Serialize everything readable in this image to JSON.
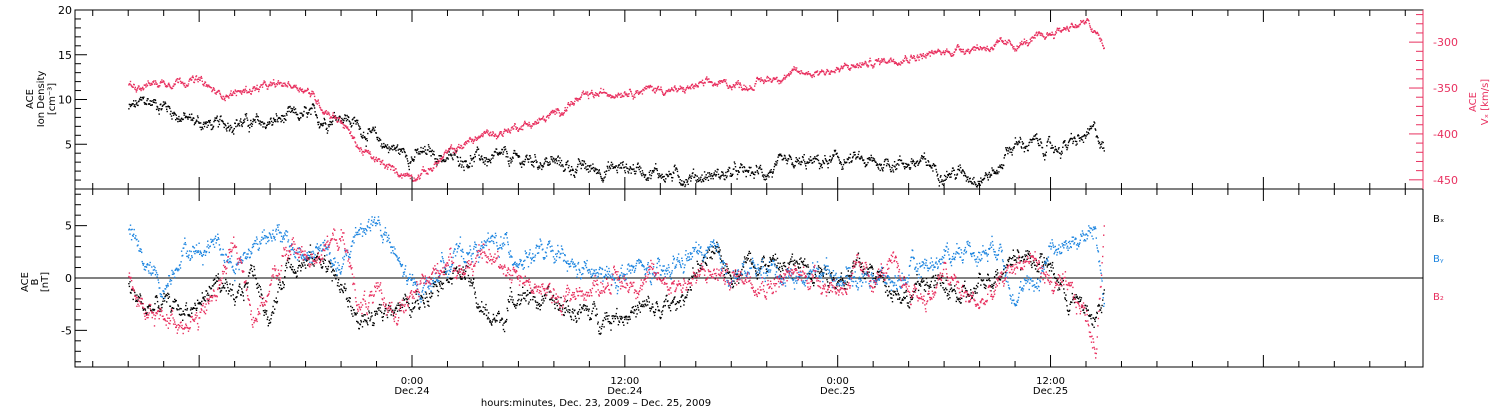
{
  "colors": {
    "black": "#000000",
    "pink": "#e8305f",
    "blue": "#1f86e0",
    "frame": "#000000"
  },
  "chart_data": [
    {
      "type": "scatter",
      "panel": "top",
      "left_axis": {
        "label_lines": [
          "ACE",
          "Ion Density",
          "[cm⁻³]"
        ],
        "ticks": [
          5,
          10,
          15,
          20
        ],
        "ylim": [
          0,
          20
        ]
      },
      "right_axis": {
        "label_lines": [
          "ACE",
          "Vₓ [km/s]"
        ],
        "ticks": [
          -300,
          -350,
          -400,
          -450
        ],
        "ylim": [
          -460,
          -265
        ],
        "color": "pink"
      },
      "series": [
        {
          "color": "black",
          "axis": "left",
          "x": [
            -16,
            -15,
            -14,
            -13,
            -12,
            -11,
            -10,
            -9,
            -8,
            -7,
            -6,
            -5,
            -4,
            -3,
            -2,
            -1,
            0,
            1,
            2,
            3,
            4,
            4.5,
            5,
            6,
            7,
            8,
            9,
            10,
            11,
            12,
            13,
            14,
            15,
            16,
            17,
            18,
            19,
            20,
            21,
            22,
            23,
            24,
            25,
            26,
            27,
            28,
            29,
            30,
            31,
            32,
            33,
            33.5,
            34,
            35,
            36,
            37,
            38,
            38.5,
            39
          ],
          "y": [
            9,
            9.8,
            9.5,
            8,
            7.5,
            7,
            7.8,
            7.2,
            7.5,
            8,
            8.2,
            7.8,
            8.5,
            7,
            5.5,
            4.5,
            3.8,
            4,
            3.5,
            3.5,
            3.5,
            3,
            3.5,
            3.2,
            3.3,
            3,
            2.5,
            2.3,
            2.3,
            2.5,
            2.3,
            1.8,
            1.5,
            1.5,
            1.6,
            1.8,
            1.8,
            2,
            2.5,
            2.8,
            3,
            3.2,
            3.2,
            2.8,
            3.1,
            3,
            2.8,
            2,
            1.8,
            1.5,
            2,
            4.5,
            5,
            5.2,
            4.5,
            5,
            5.8,
            6.5,
            4.5
          ]
        },
        {
          "color": "pink",
          "axis": "right",
          "x": [
            -16,
            -15,
            -14,
            -13,
            -12,
            -11,
            -10,
            -9,
            -8,
            -7,
            -6,
            -5,
            -4,
            -3,
            -2,
            -1,
            0,
            1,
            2,
            3,
            4,
            5,
            6,
            7,
            8,
            9,
            10,
            11,
            12,
            13,
            14,
            15,
            16,
            17,
            18,
            19,
            20,
            21,
            22,
            23,
            24,
            25,
            26,
            27,
            28,
            29,
            30,
            31,
            32,
            33,
            34,
            35,
            36,
            37,
            38,
            38.5,
            39
          ],
          "y": [
            -347,
            -345,
            -343,
            -340,
            -342,
            -356,
            -355,
            -350,
            -348,
            -345,
            -350,
            -372,
            -385,
            -415,
            -430,
            -440,
            -445,
            -438,
            -420,
            -410,
            -400,
            -398,
            -390,
            -387,
            -378,
            -365,
            -358,
            -355,
            -352,
            -351,
            -350,
            -353,
            -347,
            -345,
            -345,
            -347,
            -340,
            -335,
            -333,
            -331,
            -330,
            -325,
            -322,
            -317,
            -315,
            -314,
            -310,
            -306,
            -305,
            -303,
            -303,
            -298,
            -290,
            -282,
            -278,
            -290,
            -305
          ]
        }
      ]
    },
    {
      "type": "scatter",
      "panel": "bottom",
      "left_axis": {
        "label_lines": [
          "ACE",
          "B",
          "[nT]"
        ],
        "ticks": [
          -5,
          0,
          5
        ],
        "ylim": [
          -8.5,
          8.5
        ]
      },
      "zero_line": true,
      "legend": [
        "Bₓ",
        "Bᵧ",
        "B₂"
      ],
      "legend_position": "right",
      "series": [
        {
          "color": "black",
          "x": [
            -16,
            -15,
            -14,
            -13,
            -12,
            -11,
            -10,
            -9,
            -8,
            -7,
            -6,
            -5,
            -4,
            -3,
            -2,
            -1,
            0,
            1,
            2,
            3,
            4,
            5,
            6,
            7,
            8,
            9,
            10,
            11,
            12,
            13,
            14,
            15,
            16,
            17,
            18,
            19,
            20,
            21,
            22,
            23,
            24,
            25,
            26,
            27,
            28,
            29,
            30,
            31,
            32,
            33,
            34,
            35,
            36,
            37,
            38,
            38.5,
            39
          ],
          "y": [
            -1,
            -3,
            -2.5,
            -3,
            -2.5,
            0,
            -3,
            1,
            -4,
            2,
            1.5,
            2,
            -1,
            -4,
            -4,
            -2,
            -3,
            -0.5,
            1,
            0.5,
            -3.5,
            -4,
            -1,
            -2,
            -2.5,
            -3,
            -3.5,
            -3.5,
            -3.2,
            -3,
            -3,
            -2.5,
            1,
            2,
            0.5,
            2,
            1.5,
            1,
            1.5,
            1,
            0,
            1,
            0.5,
            -0.5,
            -2,
            0,
            -1,
            -2,
            -1,
            1,
            2.5,
            2,
            1,
            -2,
            -3,
            -4,
            -1
          ]
        },
        {
          "color": "blue",
          "x": [
            -16,
            -15,
            -14,
            -13,
            -12,
            -11,
            -10,
            -9,
            -8,
            -7,
            -6,
            -5,
            -4,
            -3,
            -2,
            -1,
            0,
            1,
            2,
            3,
            4,
            5,
            6,
            7,
            8,
            9,
            10,
            11,
            12,
            13,
            14,
            15,
            16,
            17,
            18,
            19,
            20,
            21,
            22,
            23,
            24,
            25,
            26,
            27,
            28,
            29,
            30,
            31,
            32,
            33,
            34,
            35,
            36,
            37,
            38,
            38.5,
            39
          ],
          "y": [
            4.5,
            1,
            -1,
            3,
            2.5,
            4,
            1,
            3,
            5,
            3,
            2,
            3,
            0.5,
            5,
            5.5,
            2,
            -1,
            -0.5,
            2,
            2.5,
            3,
            3.5,
            2,
            2.5,
            2,
            1,
            0.5,
            0,
            0.5,
            1,
            0,
            1.5,
            2.5,
            2,
            0.5,
            0.5,
            1,
            0.5,
            0,
            1,
            0.5,
            0,
            0.5,
            -0.5,
            0.5,
            1.5,
            2,
            3,
            2.5,
            3.5,
            -1.5,
            -1,
            3,
            3.5,
            4,
            4.5,
            -2
          ]
        },
        {
          "color": "pink",
          "x": [
            -16,
            -15,
            -14,
            -13,
            -12,
            -11,
            -10,
            -9,
            -8,
            -7,
            -6,
            -5,
            -4,
            -3,
            -2,
            -1,
            0,
            1,
            2,
            3,
            4,
            5,
            6,
            7,
            8,
            9,
            10,
            11,
            12,
            13,
            14,
            15,
            16,
            17,
            18,
            19,
            20,
            21,
            22,
            23,
            24,
            25,
            26,
            27,
            28,
            29,
            30,
            31,
            32,
            33,
            34,
            35,
            36,
            37,
            38,
            38.5,
            39
          ],
          "y": [
            0,
            -4,
            -3.5,
            -4,
            -4,
            -1,
            3.5,
            -3.5,
            -1,
            3,
            2,
            3,
            4,
            -2.5,
            -2,
            -3,
            -2,
            0,
            2,
            1,
            2,
            1.5,
            0.5,
            -1,
            -2,
            -1.5,
            -1,
            0,
            -0.5,
            0,
            0,
            -0.5,
            0,
            0.5,
            0,
            0.5,
            -0.5,
            0,
            0.5,
            0,
            -1,
            0.5,
            0,
            1,
            -1,
            -2,
            0.5,
            -1.5,
            -2.5,
            -1,
            1.5,
            2,
            -0.5,
            -1.5,
            -3.5,
            -7,
            5
          ]
        }
      ],
      "x_axis": {
        "xlim": [
          -19,
          57
        ],
        "major_ticks": [
          0,
          12,
          24,
          36
        ],
        "tick_labels": [
          {
            "x": 0,
            "lines": [
              "0:00",
              "Dec.24"
            ]
          },
          {
            "x": 12,
            "lines": [
              "12:00",
              "Dec.24"
            ]
          },
          {
            "x": 24,
            "lines": [
              "0:00",
              "Dec.25"
            ]
          },
          {
            "x": 36,
            "lines": [
              "12:00",
              "Dec.25"
            ]
          }
        ],
        "title": "hours:minutes, Dec. 23, 2009 – Dec. 25, 2009"
      }
    }
  ]
}
